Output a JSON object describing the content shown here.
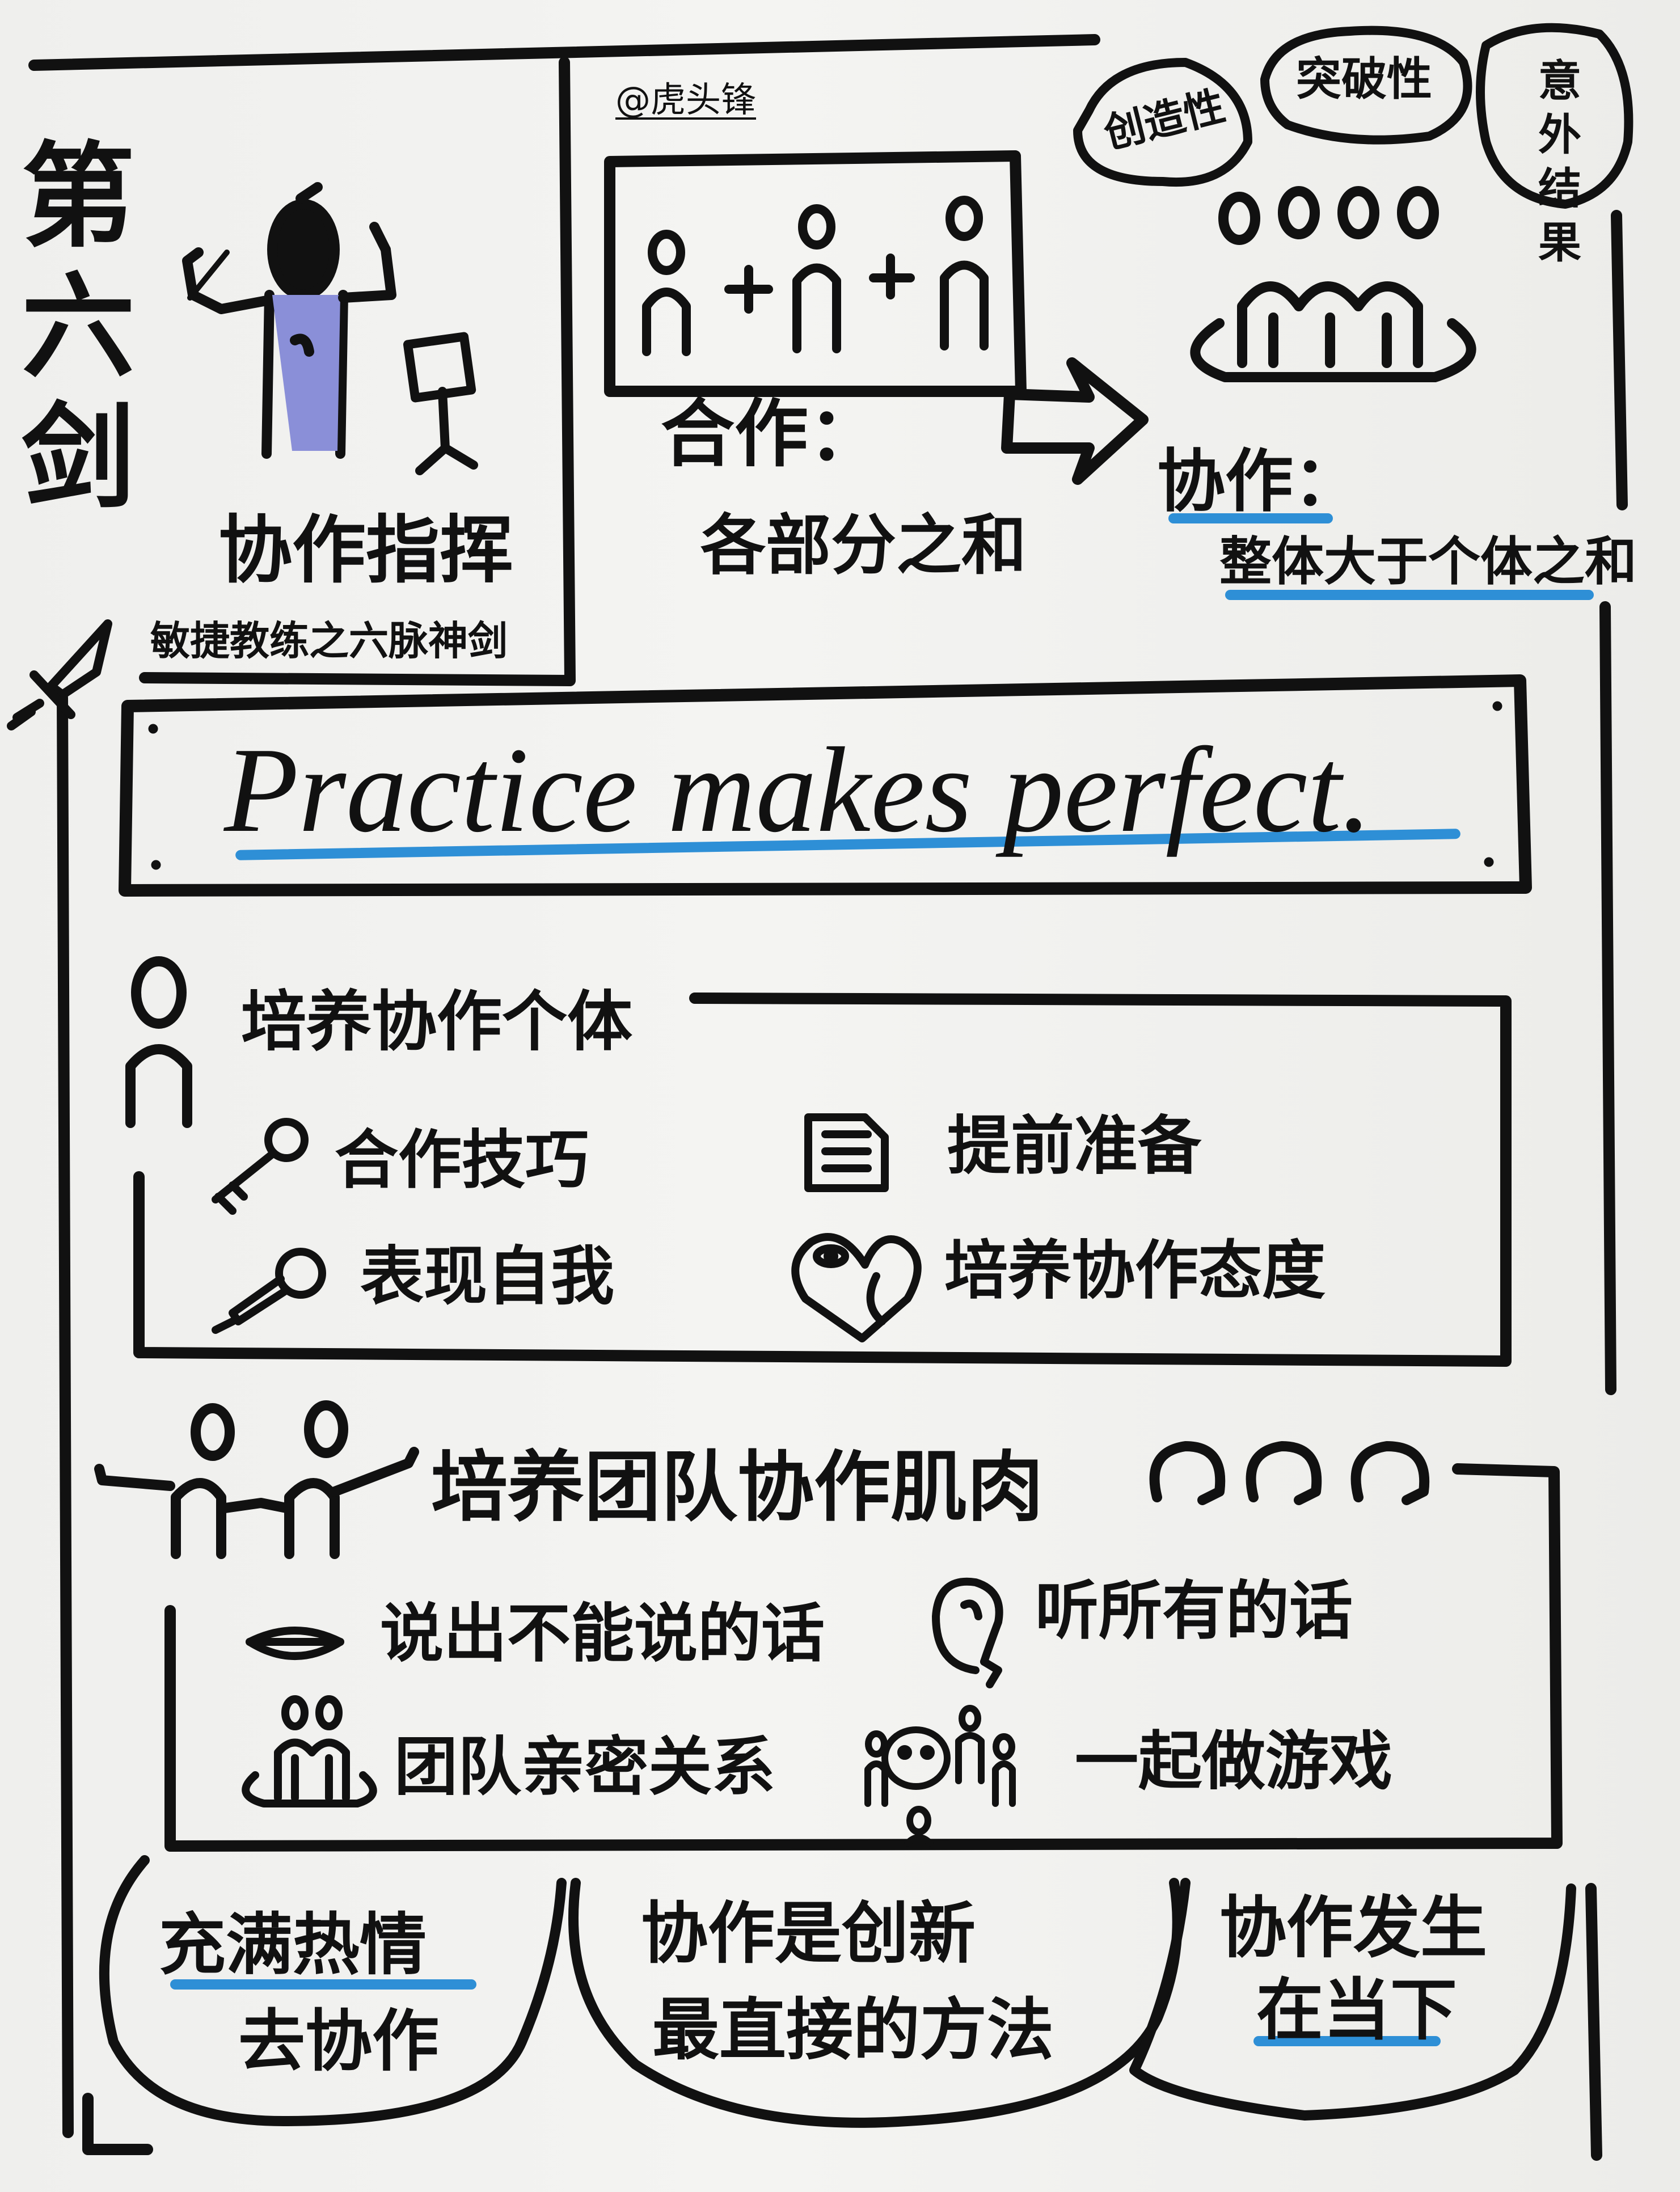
{
  "watermark": "@虎头锋",
  "title": {
    "chapter": "第六剑",
    "name": "协作指挥",
    "subtitle": "敏捷教练之六脉神剑"
  },
  "bubbles": [
    "创造性",
    "突破性",
    "意外结果"
  ],
  "cooperation": {
    "label": "合作：",
    "desc": "各部分之和"
  },
  "collaboration": {
    "label": "协作：",
    "desc": "整体大于个体之和"
  },
  "motto": "Practice makes perfect.",
  "individual": {
    "heading": "培养协作个体",
    "items": [
      {
        "icon": "key-icon",
        "label": "合作技巧"
      },
      {
        "icon": "document-icon",
        "label": "提前准备"
      },
      {
        "icon": "microphone-icon",
        "label": "表现自我"
      },
      {
        "icon": "heart-eye-icon",
        "label": "培养协作态度"
      }
    ]
  },
  "team": {
    "heading": "培养团队协作肌肉",
    "items": [
      {
        "icon": "lips-icon",
        "label": "说出不能说的话"
      },
      {
        "icon": "ear-icon",
        "label": "听所有的话"
      },
      {
        "icon": "team-icon",
        "label": "团队亲密关系"
      },
      {
        "icon": "play-together-icon",
        "label": "一起做游戏"
      }
    ]
  },
  "footer": {
    "left": [
      "充满热情",
      "去协作"
    ],
    "middle": [
      "协作是创新",
      "最直接的方法"
    ],
    "right": [
      "协作发生",
      "在当下"
    ]
  },
  "colors": {
    "ink": "#111111",
    "accent_blue": "#2e8fd6",
    "conductor_fill": "#8a8fd8",
    "paper": "#f1f1ef"
  }
}
